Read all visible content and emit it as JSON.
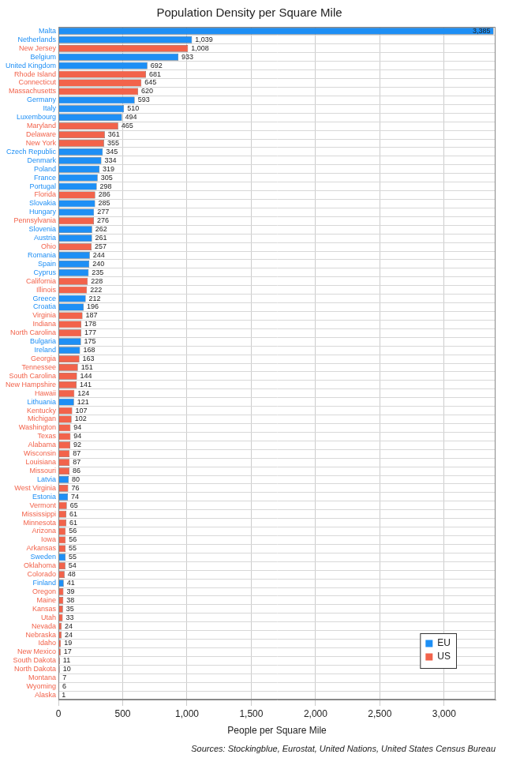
{
  "chart_data": {
    "type": "bar",
    "orientation": "horizontal",
    "stacked": true,
    "title": "Population Density per Square Mile",
    "x_label": "People per Square Mile",
    "source": "Sources: Stockingblue, Eurostat, United Nations, United States Census Bureau",
    "categories": [
      "Malta",
      "Netherlands",
      "New Jersey",
      "Belgium",
      "United Kingdom",
      "Rhode Island",
      "Connecticut",
      "Massachusetts",
      "Germany",
      "Italy",
      "Luxembourg",
      "Maryland",
      "Delaware",
      "New York",
      "Czech Republic",
      "Denmark",
      "Poland",
      "France",
      "Portugal",
      "Florida",
      "Slovakia",
      "Hungary",
      "Pennsylvania",
      "Slovenia",
      "Austria",
      "Ohio",
      "Romania",
      "Spain",
      "Cyprus",
      "California",
      "Illinois",
      "Greece",
      "Croatia",
      "Virginia",
      "Indiana",
      "North Carolina",
      "Bulgaria",
      "Ireland",
      "Georgia",
      "Tennessee",
      "South Carolina",
      "New Hampshire",
      "Hawaii",
      "Lithuania",
      "Kentucky",
      "Michigan",
      "Washington",
      "Texas",
      "Alabama",
      "Wisconsin",
      "Louisiana",
      "Missouri",
      "Latvia",
      "West Virginia",
      "Estonia",
      "Vermont",
      "Mississippi",
      "Minnesota",
      "Arizona",
      "Iowa",
      "Arkansas",
      "Sweden",
      "Oklahoma",
      "Colorado",
      "Finland",
      "Oregon",
      "Maine",
      "Kansas",
      "Utah",
      "Nevada",
      "Nebraska",
      "Idaho",
      "New Mexico",
      "South Dakota",
      "North Dakota",
      "Montana",
      "Wyoming",
      "Alaska"
    ],
    "series": [
      {
        "name": "EU",
        "color": "#1e8ff5",
        "values": [
          3385,
          1039,
          null,
          933,
          692,
          null,
          null,
          null,
          593,
          510,
          494,
          null,
          null,
          null,
          345,
          334,
          319,
          305,
          298,
          null,
          285,
          277,
          null,
          262,
          261,
          null,
          244,
          240,
          235,
          null,
          null,
          212,
          196,
          null,
          null,
          null,
          175,
          168,
          null,
          null,
          null,
          null,
          null,
          121,
          null,
          null,
          null,
          null,
          null,
          null,
          null,
          null,
          80,
          null,
          74,
          null,
          null,
          null,
          null,
          null,
          null,
          55,
          null,
          null,
          41,
          null,
          null,
          null,
          null,
          null,
          null,
          null,
          null,
          null,
          null,
          null,
          null,
          null
        ],
        "value_labels": [
          "3,385",
          "1,039",
          null,
          "933",
          "692",
          null,
          null,
          null,
          "593",
          "510",
          "494",
          null,
          null,
          null,
          "345",
          "334",
          "319",
          "305",
          "298",
          null,
          "285",
          "277",
          null,
          "262",
          "261",
          null,
          "244",
          "240",
          "235",
          null,
          null,
          "212",
          "196",
          null,
          null,
          null,
          "175",
          "168",
          null,
          null,
          null,
          null,
          null,
          "121",
          null,
          null,
          null,
          null,
          null,
          null,
          null,
          null,
          "80",
          null,
          "74",
          null,
          null,
          null,
          null,
          null,
          null,
          "55",
          null,
          null,
          "41",
          null,
          null,
          null,
          null,
          null,
          null,
          null,
          null,
          null,
          null,
          null,
          null,
          null
        ]
      },
      {
        "name": "US",
        "color": "#f2634b",
        "values": [
          null,
          null,
          1008,
          null,
          null,
          681,
          645,
          620,
          null,
          null,
          null,
          465,
          361,
          355,
          null,
          null,
          null,
          null,
          null,
          286,
          null,
          null,
          276,
          null,
          null,
          257,
          null,
          null,
          null,
          228,
          222,
          null,
          null,
          187,
          178,
          177,
          null,
          null,
          163,
          151,
          144,
          141,
          124,
          null,
          107,
          102,
          94,
          94,
          92,
          87,
          87,
          86,
          null,
          76,
          null,
          65,
          61,
          61,
          56,
          56,
          55,
          null,
          54,
          48,
          null,
          39,
          38,
          35,
          33,
          24,
          24,
          19,
          17,
          11,
          10,
          7,
          6,
          1
        ],
        "value_labels": [
          null,
          null,
          "1,008",
          null,
          null,
          "681",
          "645",
          "620",
          null,
          null,
          null,
          "465",
          "361",
          "355",
          null,
          null,
          null,
          null,
          null,
          "286",
          null,
          null,
          "276",
          null,
          null,
          "257",
          null,
          null,
          null,
          "228",
          "222",
          null,
          null,
          "187",
          "178",
          "177",
          null,
          null,
          "163",
          "151",
          "144",
          "141",
          "124",
          null,
          "107",
          "102",
          "94",
          "94",
          "92",
          "87",
          "87",
          "86",
          null,
          "76",
          null,
          "65",
          "61",
          "61",
          "56",
          "56",
          "55",
          null,
          "54",
          "48",
          null,
          "39",
          "38",
          "35",
          "33",
          "24",
          "24",
          "19",
          "17",
          "11",
          "10",
          "7",
          "6",
          "1"
        ]
      }
    ],
    "xlim": [
      0,
      3400
    ],
    "xticks": [
      0,
      500,
      {
        "value": 1000,
        "label": "1,000"
      },
      {
        "value": 1500,
        "label": "1,500"
      },
      {
        "value": 2000,
        "label": "2,000"
      },
      {
        "value": 2500,
        "label": "2,500"
      },
      {
        "value": 3000,
        "label": "3,000"
      }
    ],
    "grid": true,
    "legend": "lower right",
    "data_labels": true
  }
}
